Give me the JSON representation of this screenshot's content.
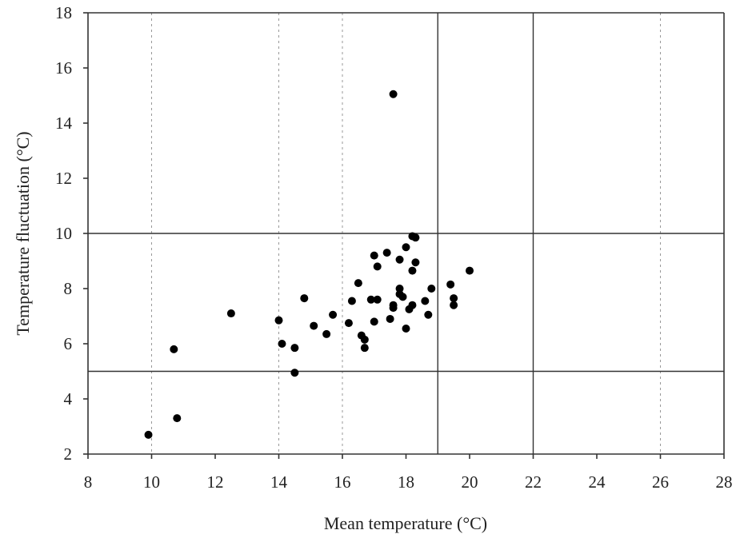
{
  "chart_data": {
    "type": "scatter",
    "xlabel": "Mean temperature (°C)",
    "ylabel": "Temperature fluctuation (°C)",
    "xlim": [
      8,
      28
    ],
    "ylim": [
      2,
      18
    ],
    "xticks": [
      "8",
      "10",
      "12",
      "14",
      "16",
      "18",
      "20",
      "22",
      "24",
      "26",
      "28"
    ],
    "yticks": [
      "2",
      "4",
      "6",
      "8",
      "10",
      "12",
      "14",
      "16",
      "18"
    ],
    "reference_lines": {
      "horizontal": [
        5,
        10,
        18
      ],
      "vertical": [
        19,
        22
      ]
    },
    "vertical_dashed_gridlines": [
      10,
      14,
      16,
      26,
      28
    ],
    "grid": false,
    "marker_color": "#000000",
    "series": [
      {
        "points": [
          [
            9.9,
            2.7
          ],
          [
            10.7,
            5.8
          ],
          [
            10.8,
            3.3
          ],
          [
            12.5,
            7.1
          ],
          [
            14.0,
            6.85
          ],
          [
            14.1,
            6.0
          ],
          [
            14.5,
            5.85
          ],
          [
            14.5,
            4.95
          ],
          [
            14.8,
            7.65
          ],
          [
            15.1,
            6.65
          ],
          [
            15.5,
            6.35
          ],
          [
            15.7,
            7.05
          ],
          [
            16.2,
            6.75
          ],
          [
            16.3,
            7.55
          ],
          [
            16.5,
            8.2
          ],
          [
            16.6,
            6.3
          ],
          [
            16.7,
            5.85
          ],
          [
            16.7,
            6.15
          ],
          [
            16.9,
            7.6
          ],
          [
            17.0,
            6.8
          ],
          [
            17.0,
            9.2
          ],
          [
            17.1,
            8.8
          ],
          [
            17.1,
            7.6
          ],
          [
            17.4,
            9.3
          ],
          [
            17.5,
            6.9
          ],
          [
            17.6,
            7.3
          ],
          [
            17.6,
            7.4
          ],
          [
            17.6,
            15.05
          ],
          [
            17.8,
            9.05
          ],
          [
            17.8,
            8.0
          ],
          [
            17.8,
            7.8
          ],
          [
            17.9,
            7.7
          ],
          [
            18.0,
            6.55
          ],
          [
            18.0,
            9.5
          ],
          [
            18.1,
            7.25
          ],
          [
            18.2,
            9.9
          ],
          [
            18.2,
            8.65
          ],
          [
            18.2,
            7.4
          ],
          [
            18.3,
            9.85
          ],
          [
            18.3,
            8.95
          ],
          [
            18.6,
            7.55
          ],
          [
            18.7,
            7.05
          ],
          [
            18.8,
            8.0
          ],
          [
            19.4,
            8.15
          ],
          [
            19.5,
            7.65
          ],
          [
            19.5,
            7.4
          ],
          [
            20.0,
            8.65
          ]
        ]
      }
    ]
  }
}
